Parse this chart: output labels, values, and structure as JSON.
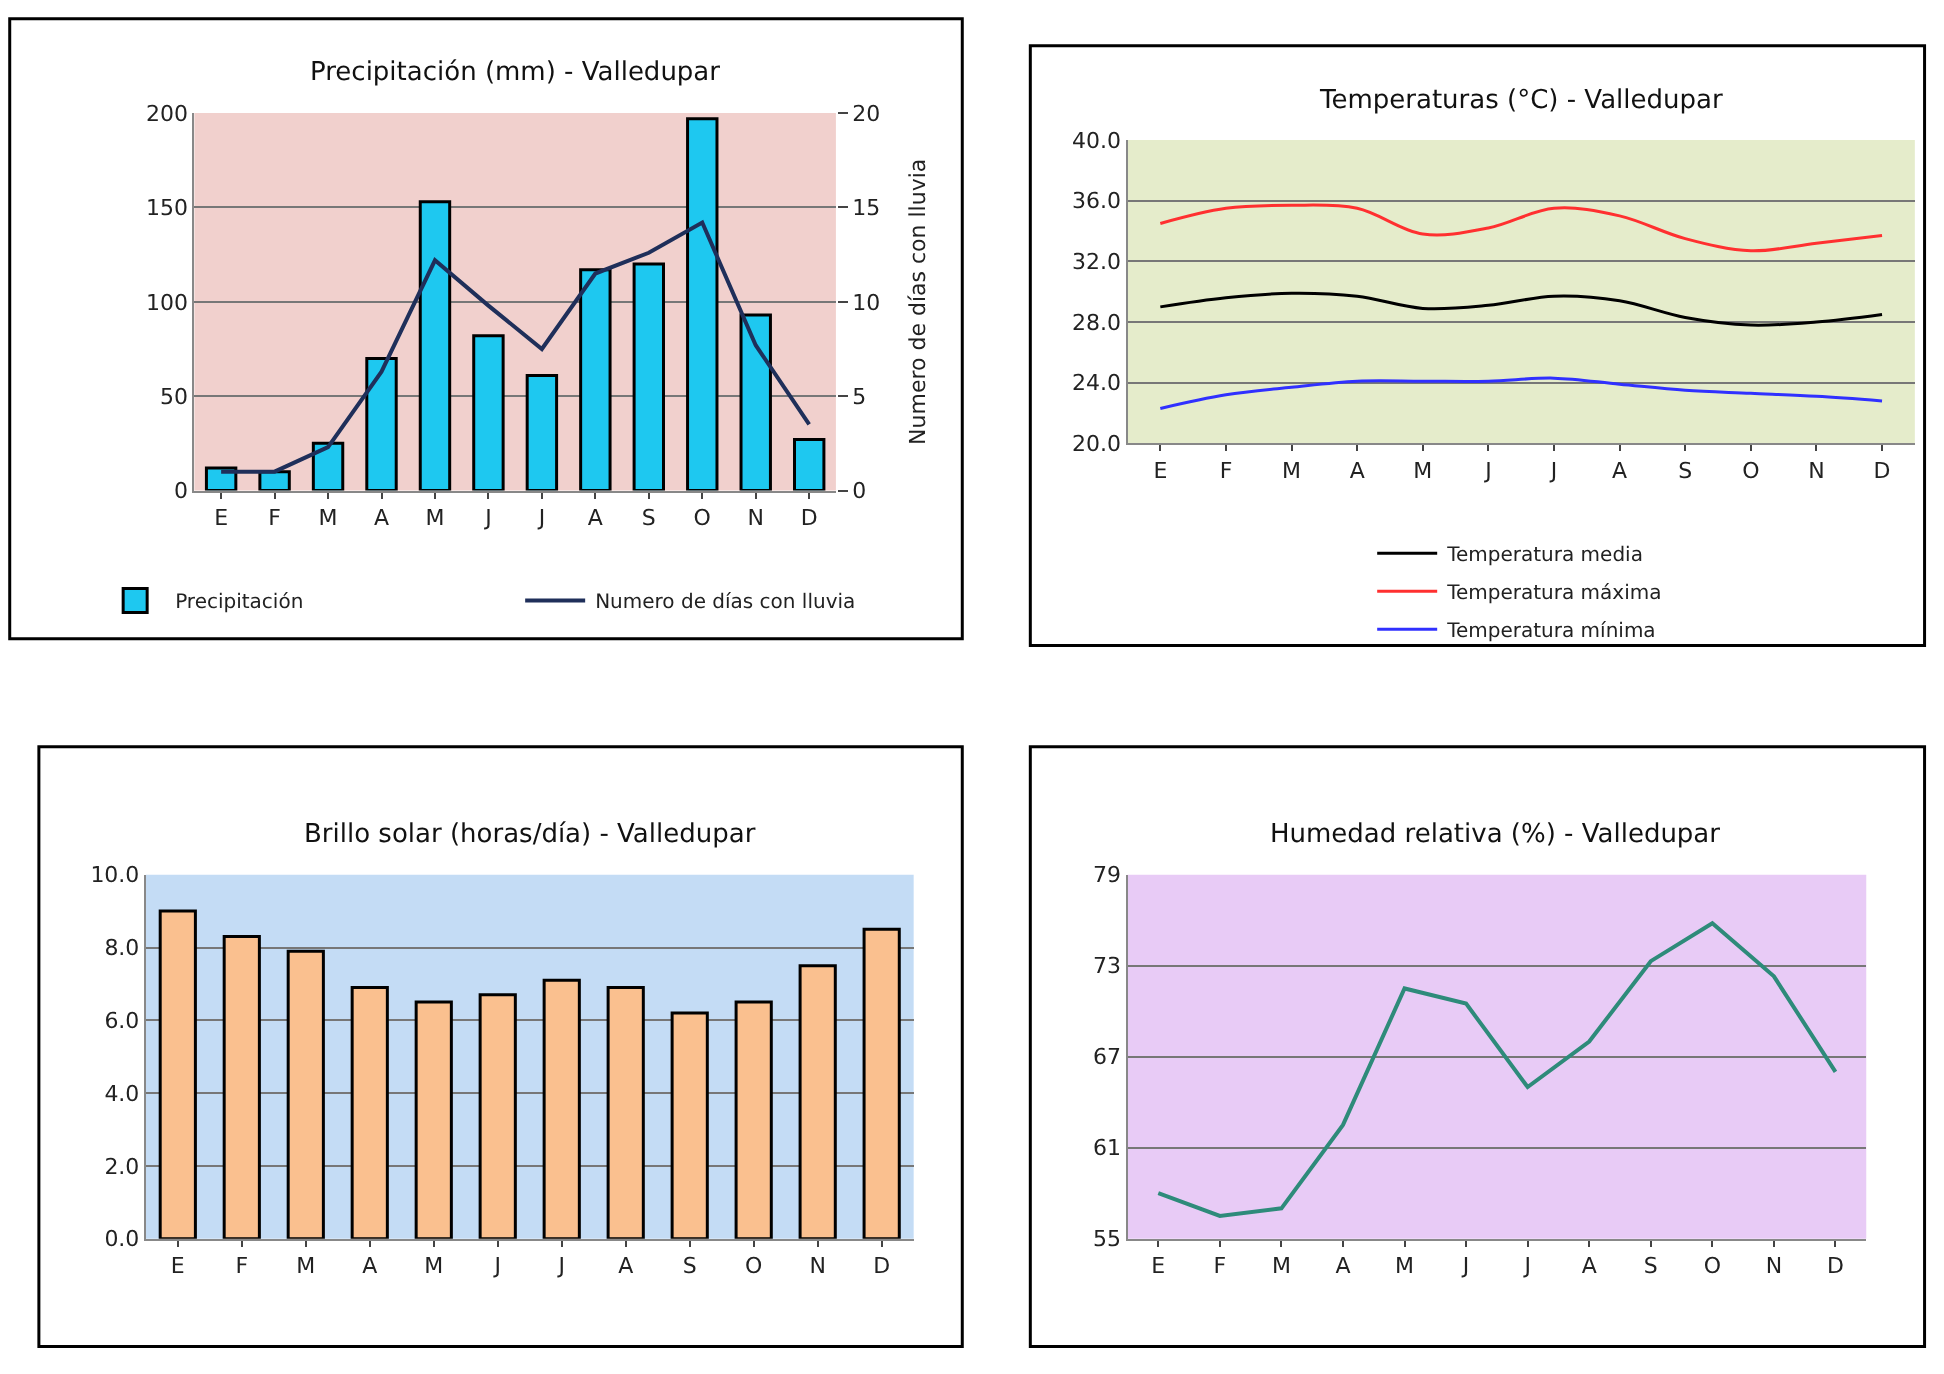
{
  "chart_data": [
    {
      "type": "bar",
      "title": "Precipitación (mm) - Valledupar",
      "y2label": "Numero de días con lluvia",
      "categories": [
        "E",
        "F",
        "M",
        "A",
        "M",
        "J",
        "J",
        "A",
        "S",
        "O",
        "N",
        "D"
      ],
      "series": [
        {
          "name": "Precipitación",
          "color": "#1ec8f0",
          "values": [
            12,
            10,
            25,
            70,
            153,
            82,
            61,
            117,
            120,
            197,
            93,
            27
          ]
        },
        {
          "name": "Numero de días con lluvia",
          "type": "line",
          "axis": "y2",
          "color": "#1f2f5a",
          "values": [
            1.0,
            1.0,
            2.3,
            6.3,
            12.2,
            9.8,
            7.5,
            11.5,
            12.6,
            14.2,
            7.7,
            3.5
          ]
        }
      ],
      "ylim": [
        0,
        200
      ],
      "yticks": [
        0,
        50,
        100,
        150,
        200
      ],
      "y2lim": [
        0,
        20
      ],
      "y2ticks": [
        0,
        5,
        10,
        15,
        20
      ],
      "grid": "y",
      "legend": "bottom",
      "marker": "none"
    },
    {
      "type": "line",
      "title": "Temperaturas (°C) - Valledupar",
      "categories": [
        "E",
        "F",
        "M",
        "A",
        "M",
        "J",
        "J",
        "A",
        "S",
        "O",
        "N",
        "D"
      ],
      "series": [
        {
          "name": "Temperatura media",
          "color": "#000000",
          "values": [
            29.0,
            29.6,
            29.9,
            29.7,
            28.9,
            29.1,
            29.7,
            29.4,
            28.3,
            27.8,
            28.0,
            28.5
          ]
        },
        {
          "name": "Temperatura máxima",
          "color": "#ff3030",
          "values": [
            34.5,
            35.5,
            35.7,
            35.5,
            33.8,
            34.2,
            35.5,
            35.0,
            33.5,
            32.7,
            33.2,
            33.7
          ]
        },
        {
          "name": "Temperatura mínima",
          "color": "#3030ff",
          "values": [
            22.3,
            23.2,
            23.7,
            24.1,
            24.1,
            24.1,
            24.3,
            23.9,
            23.5,
            23.3,
            23.1,
            22.8
          ]
        }
      ],
      "ylim": [
        20,
        40
      ],
      "yticks": [
        {
          "value": 20,
          "label": "20.0"
        },
        {
          "value": 24,
          "label": "24.0"
        },
        {
          "value": 28,
          "label": "28.0"
        },
        {
          "value": 32,
          "label": "32.0"
        },
        {
          "value": 36,
          "label": "36.0"
        },
        {
          "value": 40,
          "label": "40.0"
        }
      ],
      "grid": "y",
      "legend": "bottom",
      "marker": "none"
    },
    {
      "type": "bar",
      "title": "Brillo solar (horas/día) - Valledupar",
      "categories": [
        "E",
        "F",
        "M",
        "A",
        "M",
        "J",
        "J",
        "A",
        "S",
        "O",
        "N",
        "D"
      ],
      "series": [
        {
          "color": "#fac08f",
          "values": [
            9.0,
            8.3,
            7.9,
            6.9,
            6.5,
            6.7,
            7.1,
            6.9,
            6.2,
            6.5,
            7.5,
            8.5
          ]
        }
      ],
      "ylim": [
        0,
        10
      ],
      "yticks": [
        {
          "value": 0,
          "label": "0.0"
        },
        {
          "value": 2,
          "label": "2.0"
        },
        {
          "value": 4,
          "label": "4.0"
        },
        {
          "value": 6,
          "label": "6.0"
        },
        {
          "value": 8,
          "label": "8.0"
        },
        {
          "value": 10,
          "label": "10.0"
        }
      ],
      "grid": "y"
    },
    {
      "type": "line",
      "title": "Humedad relativa (%) - Valledupar",
      "categories": [
        "E",
        "F",
        "M",
        "A",
        "M",
        "J",
        "J",
        "A",
        "S",
        "O",
        "N",
        "D"
      ],
      "series": [
        {
          "color": "#2e8b7a",
          "values": [
            58,
            56.5,
            57,
            62.5,
            71.5,
            70.5,
            65,
            68,
            73.3,
            75.8,
            72.3,
            66
          ]
        }
      ],
      "ylim": [
        55,
        79
      ],
      "yticks": [
        55,
        61,
        67,
        73,
        79
      ],
      "grid": "y",
      "marker": "none"
    }
  ]
}
